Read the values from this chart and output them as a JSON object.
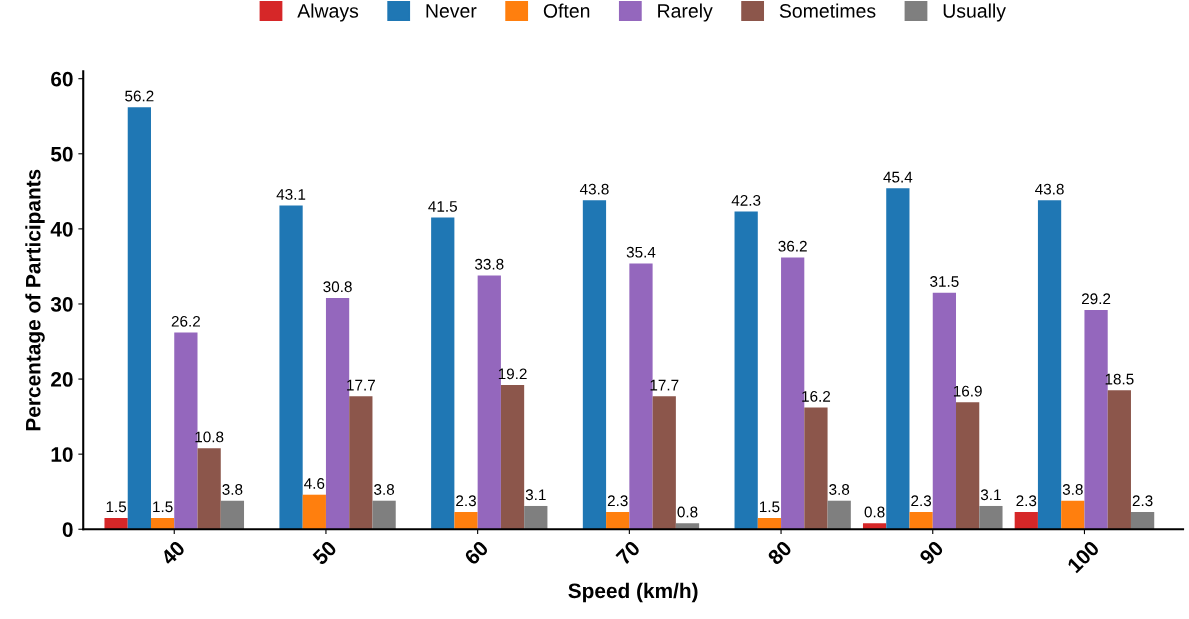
{
  "chart_data": {
    "type": "bar",
    "xlabel": "Speed (km/h)",
    "ylabel": "Percentage of Participants",
    "categories": [
      "40",
      "50",
      "60",
      "70",
      "80",
      "90",
      "100"
    ],
    "series": [
      {
        "name": "Always",
        "color": "#d62728",
        "values": [
          1.5,
          0,
          0,
          0,
          0,
          0.8,
          2.3
        ],
        "value_labels": [
          "1.5",
          null,
          null,
          null,
          null,
          "0.8",
          "2.3"
        ]
      },
      {
        "name": "Never",
        "color": "#1f77b4",
        "values": [
          56.2,
          43.1,
          41.5,
          43.8,
          42.3,
          45.4,
          43.8
        ],
        "value_labels": [
          "56.2",
          "43.1",
          "41.5",
          "43.8",
          "42.3",
          "45.4",
          "43.8"
        ]
      },
      {
        "name": "Often",
        "color": "#ff7f0e",
        "values": [
          1.5,
          4.6,
          2.3,
          2.3,
          1.5,
          2.3,
          3.8
        ],
        "value_labels": [
          "1.5",
          "4.6",
          "2.3",
          "2.3",
          "1.5",
          "2.3",
          "3.8"
        ]
      },
      {
        "name": "Rarely",
        "color": "#9467bd",
        "values": [
          26.2,
          30.8,
          33.8,
          35.4,
          36.2,
          31.5,
          29.2
        ],
        "value_labels": [
          "26.2",
          "30.8",
          "33.8",
          "35.4",
          "36.2",
          "31.5",
          "29.2"
        ]
      },
      {
        "name": "Sometimes",
        "color": "#8c564b",
        "values": [
          10.8,
          17.7,
          19.2,
          17.7,
          16.2,
          16.9,
          18.5
        ],
        "value_labels": [
          "10.8",
          "17.7",
          "19.2",
          "17.7",
          "16.2",
          "16.9",
          "18.5"
        ]
      },
      {
        "name": "Usually",
        "color": "#7f7f7f",
        "values": [
          3.8,
          3.8,
          3.1,
          0.8,
          3.8,
          3.1,
          2.3
        ],
        "value_labels": [
          "3.8",
          "3.8",
          "3.1",
          "0.8",
          "3.8",
          "3.1",
          "2.3"
        ]
      }
    ],
    "ylim": [
      0,
      61
    ],
    "yticks": [
      0,
      10,
      20,
      30,
      40,
      50,
      60
    ],
    "grid": false,
    "legend": "top"
  }
}
